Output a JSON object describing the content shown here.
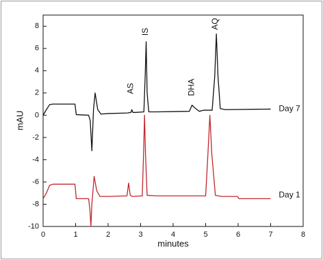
{
  "chart_data": {
    "type": "line",
    "x_label": "minutes",
    "y_label": "mAU",
    "xlim": [
      0,
      8
    ],
    "xticks": [
      0,
      1,
      2,
      3,
      4,
      5,
      6,
      7,
      8
    ],
    "ylim": [
      -10,
      9
    ],
    "yticks": [
      -10,
      -8,
      -6,
      -4,
      -2,
      0,
      2,
      4,
      6,
      8
    ],
    "series": [
      {
        "name": "Day 7",
        "color": "#111111",
        "x": [
          0,
          0.1,
          0.2,
          0.3,
          0.98,
          1.02,
          1.4,
          1.45,
          1.5,
          1.55,
          1.6,
          1.68,
          1.78,
          2.0,
          2.6,
          2.7,
          2.73,
          2.76,
          2.85,
          3.1,
          3.14,
          3.17,
          3.2,
          3.25,
          3.5,
          4.5,
          4.58,
          4.65,
          4.8,
          4.95,
          5.2,
          5.28,
          5.33,
          5.38,
          5.45,
          5.6,
          7.0
        ],
        "values": [
          0,
          0.5,
          0.95,
          1.0,
          1.0,
          0.05,
          0.0,
          -0.5,
          -3.2,
          0.5,
          2.0,
          0.5,
          0.1,
          0.15,
          0.2,
          0.25,
          0.5,
          0.25,
          0.25,
          0.3,
          3.5,
          6.6,
          2.0,
          0.3,
          0.3,
          0.35,
          0.9,
          0.7,
          0.35,
          0.45,
          0.45,
          3.5,
          7.3,
          3.5,
          0.6,
          0.5,
          0.55
        ]
      },
      {
        "name": "Day 1",
        "color": "#c0272d",
        "x": [
          0,
          0.1,
          0.2,
          0.3,
          0.98,
          1.02,
          1.4,
          1.44,
          1.47,
          1.5,
          1.57,
          1.65,
          1.75,
          2.0,
          2.58,
          2.63,
          2.68,
          2.75,
          3.05,
          3.09,
          3.12,
          3.15,
          3.2,
          3.5,
          5.0,
          5.07,
          5.13,
          5.19,
          5.3,
          5.5,
          5.98,
          6.02,
          7.0
        ],
        "values": [
          -7.5,
          -7.0,
          -6.3,
          -6.2,
          -6.2,
          -7.5,
          -7.5,
          -8.5,
          -10.0,
          -8.0,
          -5.5,
          -6.8,
          -7.3,
          -7.3,
          -7.25,
          -6.1,
          -7.2,
          -7.3,
          -7.25,
          -3.5,
          0.0,
          -3.5,
          -7.2,
          -7.25,
          -7.25,
          -3.5,
          0.0,
          -3.5,
          -7.2,
          -7.3,
          -7.3,
          -7.5,
          -7.5
        ]
      }
    ],
    "annotations": [
      {
        "text": "AS",
        "x": 2.7,
        "y": 2.4
      },
      {
        "text": "IS",
        "x": 3.15,
        "y": 7.5
      },
      {
        "text": "DHA",
        "x": 4.58,
        "y": 2.5
      },
      {
        "text": "AQ",
        "x": 5.3,
        "y": 8.2
      },
      {
        "text": "Day 7",
        "x": 7.25,
        "y": 0.55
      },
      {
        "text": "Day 1",
        "x": 7.25,
        "y": -7.2
      }
    ]
  }
}
